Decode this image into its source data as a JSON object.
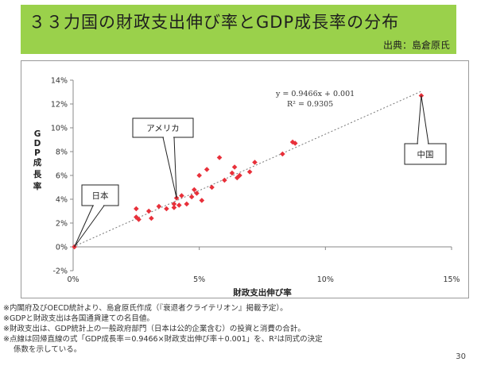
{
  "header": {
    "title": "３３力国の財政支出伸び率とGDP成長率の分布",
    "source": "出典：島倉原氏"
  },
  "chart_data": {
    "type": "scatter",
    "title": "",
    "xlabel": "財政支出伸び率",
    "ylabel": "GDP成長率",
    "xlim": [
      0,
      15
    ],
    "ylim": [
      -2,
      14
    ],
    "x_ticks": [
      "0%",
      "5%",
      "10%",
      "15%"
    ],
    "y_ticks": [
      "-2%",
      "0%",
      "2%",
      "4%",
      "6%",
      "8%",
      "10%",
      "12%",
      "14%"
    ],
    "grid": false,
    "series": [
      {
        "color": "#e8303a",
        "points": [
          [
            0.05,
            0.0
          ],
          [
            2.5,
            3.2
          ],
          [
            2.5,
            2.5
          ],
          [
            2.6,
            2.3
          ],
          [
            3.0,
            3.0
          ],
          [
            3.1,
            2.4
          ],
          [
            3.4,
            3.4
          ],
          [
            3.7,
            3.2
          ],
          [
            4.0,
            3.3
          ],
          [
            4.0,
            3.6
          ],
          [
            4.1,
            4.1
          ],
          [
            4.2,
            3.5
          ],
          [
            4.3,
            4.3
          ],
          [
            4.5,
            3.6
          ],
          [
            4.7,
            4.2
          ],
          [
            4.8,
            4.8
          ],
          [
            4.9,
            4.5
          ],
          [
            5.0,
            6.0
          ],
          [
            5.1,
            3.9
          ],
          [
            5.3,
            6.5
          ],
          [
            5.5,
            5.0
          ],
          [
            5.8,
            7.5
          ],
          [
            6.0,
            5.6
          ],
          [
            6.3,
            6.2
          ],
          [
            6.4,
            6.7
          ],
          [
            6.5,
            5.8
          ],
          [
            6.6,
            6.0
          ],
          [
            7.0,
            6.3
          ],
          [
            7.2,
            7.1
          ],
          [
            8.3,
            7.8
          ],
          [
            8.7,
            8.8
          ],
          [
            8.8,
            8.7
          ],
          [
            13.8,
            12.7
          ]
        ]
      }
    ],
    "trendline": {
      "equation": "y = 0.9466x + 0.001",
      "r_squared": "R² = 0.9305",
      "slope": 0.9466,
      "intercept": 0.001,
      "style": "dotted"
    },
    "callouts": [
      {
        "label": "日本",
        "x": 0.05,
        "y": 0.0
      },
      {
        "label": "アメリカ",
        "x": 4.1,
        "y": 4.1
      },
      {
        "label": "中国",
        "x": 13.8,
        "y": 12.7
      }
    ]
  },
  "footer": {
    "notes": [
      "※内閣府及びOECD統計より、島倉原氏作成（『衰退者クライテリオン』掲載予定）。",
      "※GDPと財政支出は各国通貨建ての名目値。",
      "※財政支出は、GDP統計上の一般政府部門（日本は公的企業含む）の投資と消費の合計。",
      "※点線は回帰直線の式「GDP成長率＝0.9466×財政支出伸び率＋0.001」を、R²は同式の決定",
      "係数を示している。"
    ],
    "page_number": "30"
  },
  "colors": {
    "banner": "#9ad14b",
    "point": "#e8303a",
    "trendline": "#777777"
  }
}
